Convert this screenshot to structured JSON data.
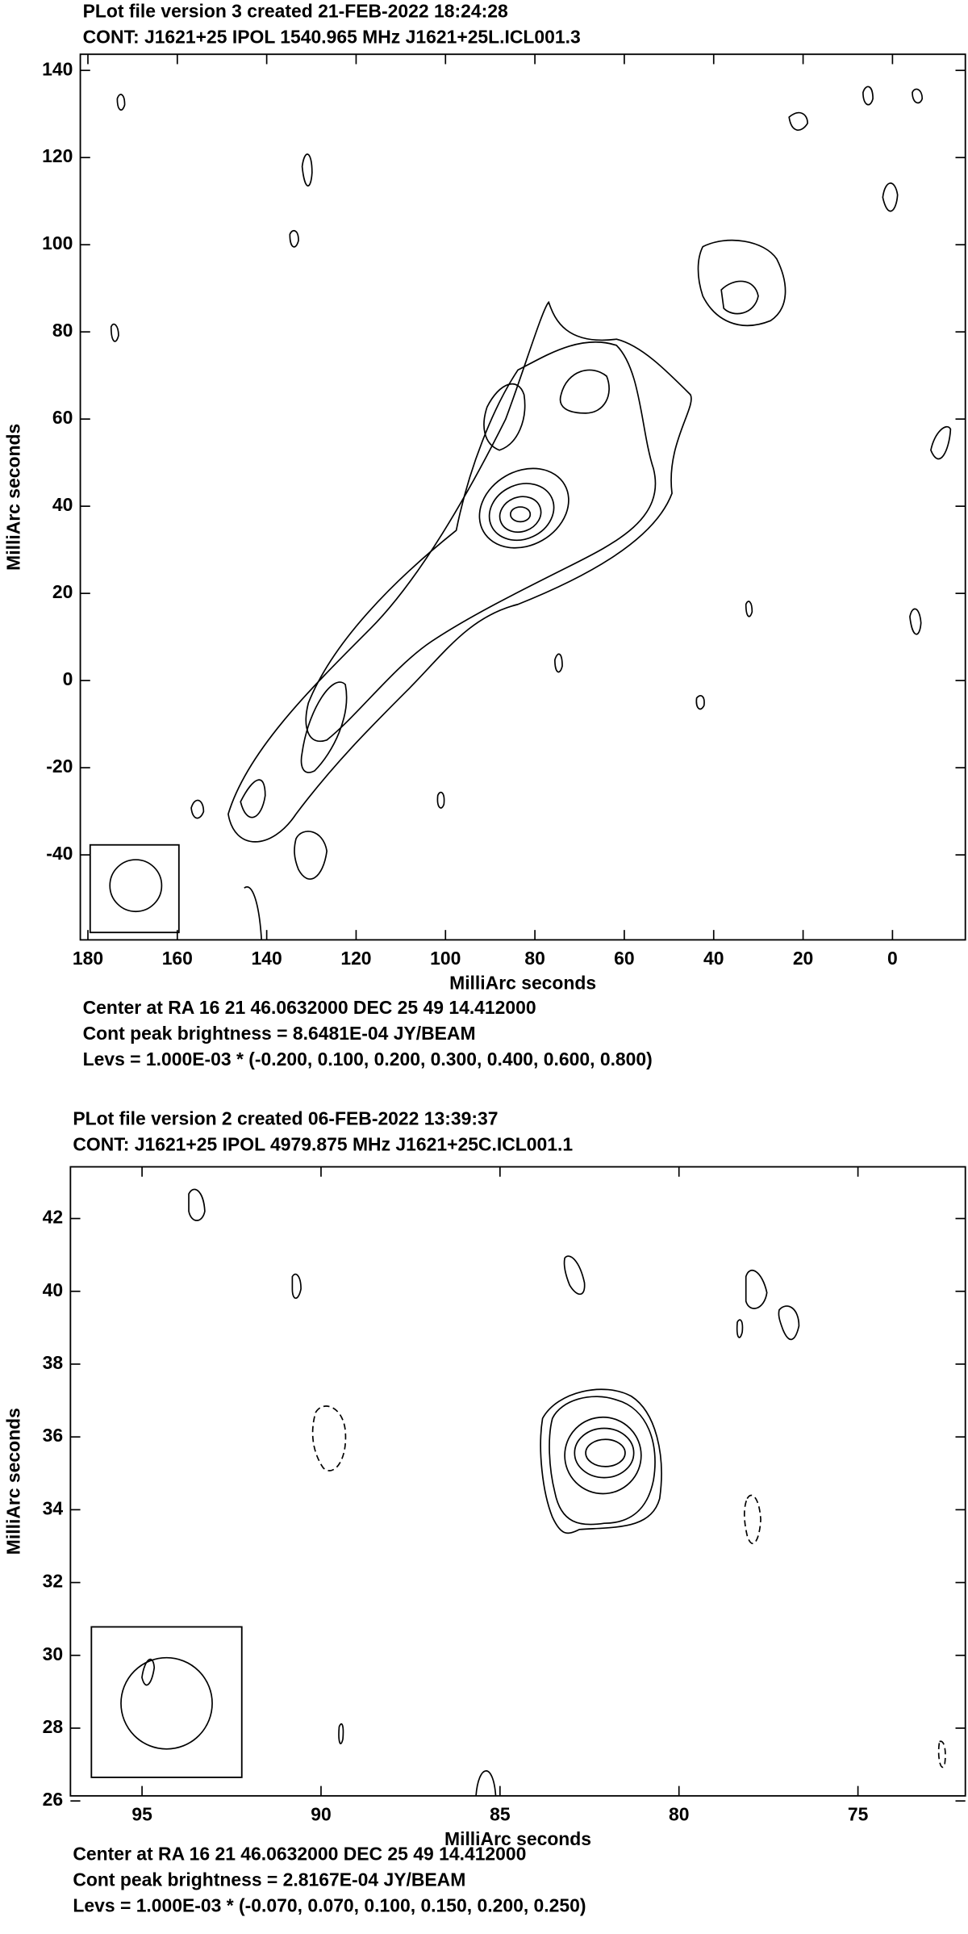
{
  "chart_data": [
    {
      "type": "contour",
      "title": "PLot file version 3  created 21-FEB-2022 18:24:28",
      "subtitle": "CONT: J1621+25  IPOL  1540.965 MHz  J1621+25L.ICL001.3",
      "x_label": "MilliArc seconds",
      "y_label": "MilliArc seconds",
      "notes": [
        "Center at RA 16 21 46.0632000  DEC 25 49 14.412000",
        "Cont peak brightness = 8.6481E-04 JY/BEAM",
        "Levs = 1.000E-03 * (-0.200, 0.100, 0.200, 0.300, 0.400, 0.600, 0.800)"
      ],
      "xlim": [
        181.7,
        -16.3
      ],
      "ylim": [
        -59.5,
        143.7
      ],
      "xticks": [
        180,
        160,
        140,
        120,
        100,
        80,
        60,
        40,
        20,
        0
      ],
      "yticks": [
        -40,
        -20,
        0,
        20,
        40,
        60,
        80,
        100,
        120,
        140
      ]
    },
    {
      "type": "contour",
      "title": "PLot file version 2  created 06-FEB-2022 13:39:37",
      "subtitle": "CONT: J1621+25  IPOL  4979.875 MHz  J1621+25C.ICL001.1",
      "x_label": "MilliArc seconds",
      "y_label": "MilliArc seconds",
      "notes": [
        "Center at RA 16 21 46.0632000  DEC 25 49 14.412000",
        "Cont peak brightness = 2.8167E-04 JY/BEAM",
        "Levs = 1.000E-03 * (-0.070, 0.070, 0.100, 0.150, 0.200, 0.250)"
      ],
      "xlim": [
        97.0,
        72.0
      ],
      "ylim": [
        26.14,
        43.42
      ],
      "xticks": [
        95,
        90,
        85,
        80,
        75
      ],
      "yticks": [
        26,
        28,
        30,
        32,
        34,
        36,
        38,
        40,
        42
      ]
    }
  ]
}
